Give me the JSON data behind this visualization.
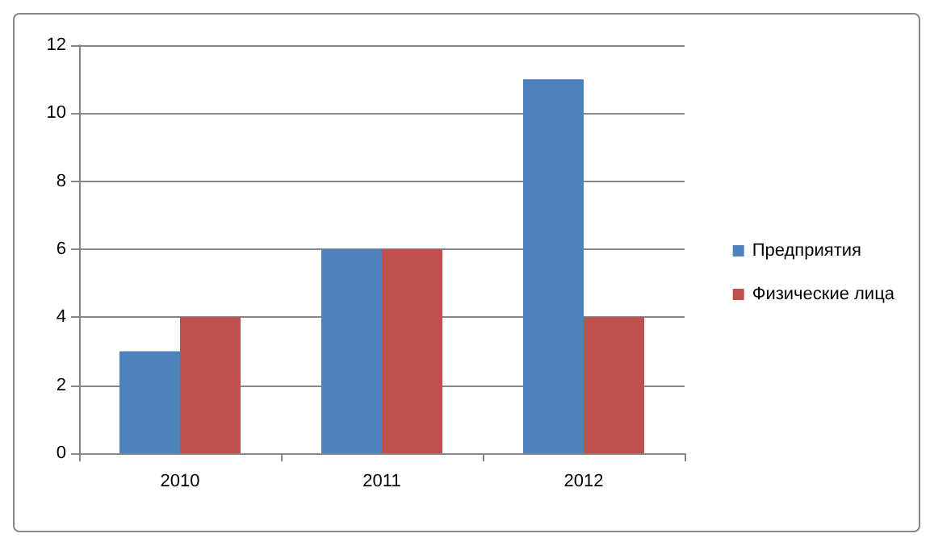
{
  "chart_data": {
    "type": "bar",
    "categories": [
      "2010",
      "2011",
      "2012"
    ],
    "series": [
      {
        "name": "Предприятия",
        "color": "#4f81bd",
        "values": [
          3,
          6,
          11
        ]
      },
      {
        "name": "Физические лица",
        "color": "#c0504d",
        "values": [
          4,
          6,
          4
        ]
      }
    ],
    "ylim": [
      0,
      12
    ],
    "yticks": [
      0,
      2,
      4,
      6,
      8,
      10,
      12
    ],
    "grid": "y",
    "legend": "right"
  }
}
